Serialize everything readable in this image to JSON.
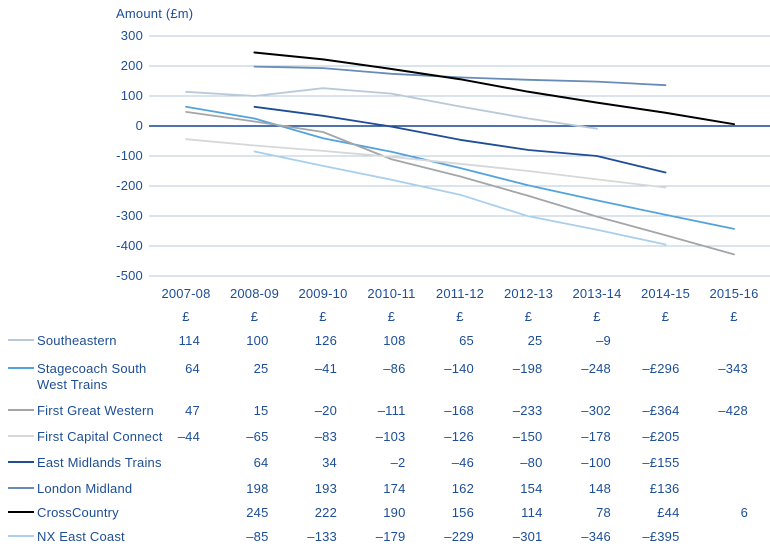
{
  "title": "Amount (£m)",
  "colors": {
    "text": "#1d4e96",
    "gridline": "#b7c7d8",
    "zero_line": "#16458f"
  },
  "chart_data": {
    "type": "line",
    "title": "Amount (£m)",
    "ylabel": "Amount (£m)",
    "ylim": [
      -500,
      300
    ],
    "yticks": [
      300,
      200,
      100,
      0,
      -100,
      -200,
      -300,
      -400,
      -500
    ],
    "grid": true,
    "legend_position": "bottom-left",
    "categories": [
      "2007-08",
      "2008-09",
      "2009-10",
      "2010-11",
      "2011-12",
      "2012-13",
      "2013-14",
      "2014-15",
      "2015-16"
    ],
    "currency_symbol": "£",
    "series": [
      {
        "name": "Southeastern",
        "color": "#b9c9da",
        "start_index": 0,
        "values": [
          114,
          100,
          126,
          108,
          65,
          25,
          -9
        ]
      },
      {
        "name": "Stagecoach South West Trains",
        "color": "#53a3dc",
        "start_index": 0,
        "values": [
          64,
          25,
          -41,
          -86,
          -140,
          -198,
          -248,
          -296,
          -343
        ]
      },
      {
        "name": "First Great Western",
        "color": "#a3a6a9",
        "start_index": 0,
        "values": [
          47,
          15,
          -20,
          -111,
          -168,
          -233,
          -302,
          -364,
          -428
        ]
      },
      {
        "name": "First Capital Connect",
        "color": "#d5d7d9",
        "start_index": 0,
        "values": [
          -44,
          -65,
          -83,
          -103,
          -126,
          -150,
          -178,
          -205
        ]
      },
      {
        "name": "East Midlands Trains",
        "color": "#1f4e96",
        "start_index": 1,
        "values": [
          64,
          34,
          -2,
          -46,
          -80,
          -100,
          -155
        ]
      },
      {
        "name": "London Midland",
        "color": "#688cb8",
        "start_index": 1,
        "values": [
          198,
          193,
          174,
          162,
          154,
          148,
          136
        ]
      },
      {
        "name": "CrossCountry",
        "color": "#000000",
        "start_index": 1,
        "values": [
          245,
          222,
          190,
          156,
          114,
          78,
          44,
          6
        ]
      },
      {
        "name": "NX East Coast",
        "color": "#a9cfec",
        "start_index": 1,
        "values": [
          -85,
          -133,
          -179,
          -229,
          -301,
          -346,
          -395
        ]
      }
    ]
  },
  "table": {
    "rows": [
      {
        "label": "Southeastern",
        "cells": [
          "114",
          "100",
          "126",
          "108",
          "65",
          "25",
          "–9",
          "",
          ""
        ]
      },
      {
        "label": "Stagecoach South West Trains",
        "cells": [
          "64",
          "25",
          "–41",
          "–86",
          "–140",
          "–198",
          "–248",
          "–£296",
          "–343"
        ]
      },
      {
        "label": "First Great Western",
        "cells": [
          "47",
          "15",
          "–20",
          "–111",
          "–168",
          "–233",
          "–302",
          "–£364",
          "–428"
        ]
      },
      {
        "label": "First Capital Connect",
        "cells": [
          "–44",
          "–65",
          "–83",
          "–103",
          "–126",
          "–150",
          "–178",
          "–£205",
          ""
        ]
      },
      {
        "label": "East Midlands Trains",
        "cells": [
          "",
          "64",
          "34",
          "–2",
          "–46",
          "–80",
          "–100",
          "–£155",
          ""
        ]
      },
      {
        "label": "London Midland",
        "cells": [
          "",
          "198",
          "193",
          "174",
          "162",
          "154",
          "148",
          "£136",
          ""
        ]
      },
      {
        "label": "CrossCountry",
        "cells": [
          "",
          "245",
          "222",
          "190",
          "156",
          "114",
          "78",
          "£44",
          "6"
        ]
      },
      {
        "label": "NX East Coast",
        "cells": [
          "",
          "–85",
          "–133",
          "–179",
          "–229",
          "–301",
          "–346",
          "–£395",
          ""
        ]
      }
    ]
  }
}
